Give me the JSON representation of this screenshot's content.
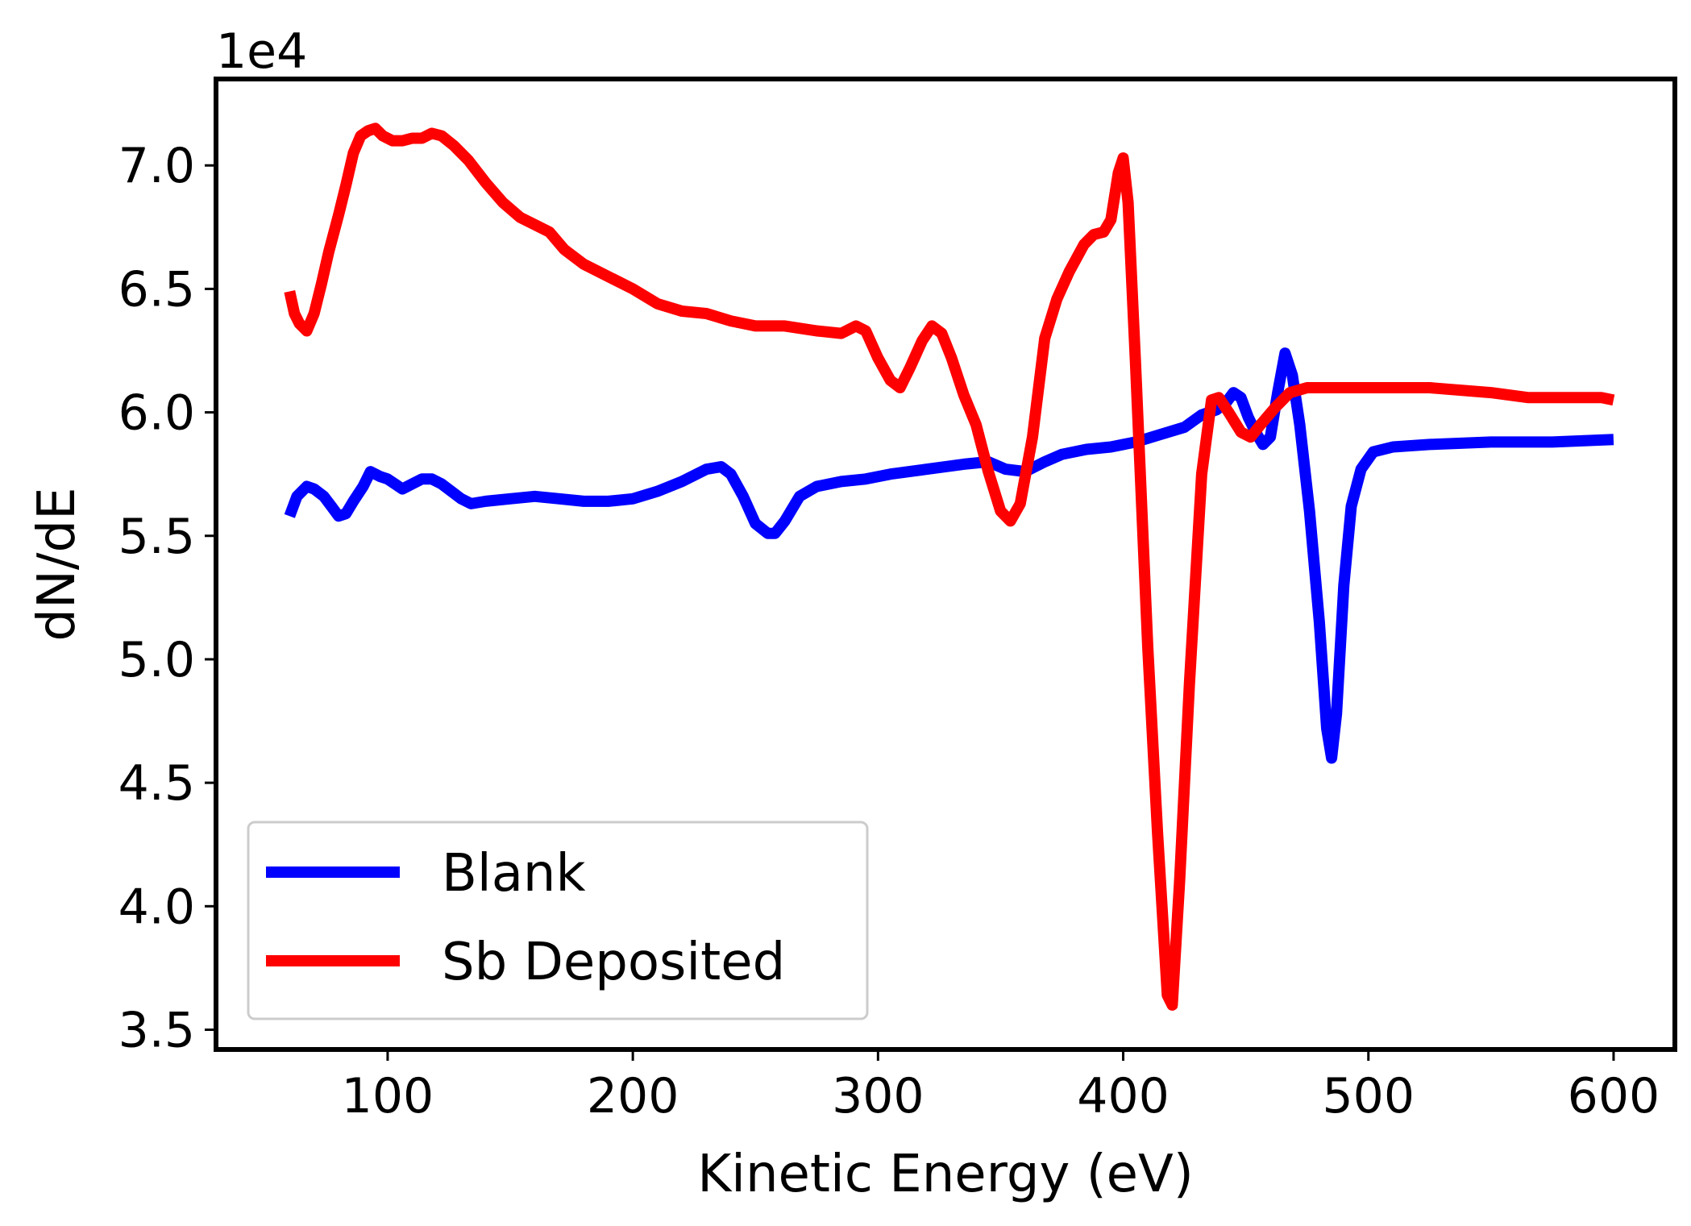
{
  "chart_data": {
    "type": "line",
    "title": "",
    "xlabel": "Kinetic Energy (eV)",
    "ylabel": "dN/dE",
    "y_offset_text": "1e4",
    "xlim": [
      30,
      625
    ],
    "ylim": [
      3.42,
      7.35
    ],
    "x_ticks": [
      100,
      200,
      300,
      400,
      500,
      600
    ],
    "y_ticks": [
      3.5,
      4.0,
      4.5,
      5.0,
      5.5,
      6.0,
      6.5,
      7.0
    ],
    "x_tick_labels": [
      "100",
      "200",
      "300",
      "400",
      "500",
      "600"
    ],
    "y_tick_labels": [
      "3.5",
      "4.0",
      "4.5",
      "5.0",
      "5.5",
      "6.0",
      "6.5",
      "7.0"
    ],
    "grid": false,
    "legend_position": "lower-left",
    "y_units_scale": "values in units of 1e4",
    "series": [
      {
        "name": "Blank",
        "color": "#0000ff",
        "points": [
          [
            60,
            5.58
          ],
          [
            63,
            5.66
          ],
          [
            67,
            5.7
          ],
          [
            70,
            5.69
          ],
          [
            74,
            5.66
          ],
          [
            77,
            5.62
          ],
          [
            80,
            5.58
          ],
          [
            83,
            5.59
          ],
          [
            86,
            5.64
          ],
          [
            90,
            5.7
          ],
          [
            93,
            5.76
          ],
          [
            97,
            5.74
          ],
          [
            100,
            5.73
          ],
          [
            103,
            5.71
          ],
          [
            106,
            5.69
          ],
          [
            110,
            5.71
          ],
          [
            114,
            5.73
          ],
          [
            118,
            5.73
          ],
          [
            122,
            5.71
          ],
          [
            126,
            5.68
          ],
          [
            130,
            5.65
          ],
          [
            134,
            5.63
          ],
          [
            140,
            5.64
          ],
          [
            150,
            5.65
          ],
          [
            160,
            5.66
          ],
          [
            170,
            5.65
          ],
          [
            180,
            5.64
          ],
          [
            190,
            5.64
          ],
          [
            200,
            5.65
          ],
          [
            210,
            5.68
          ],
          [
            220,
            5.72
          ],
          [
            230,
            5.77
          ],
          [
            236,
            5.78
          ],
          [
            240,
            5.75
          ],
          [
            245,
            5.66
          ],
          [
            250,
            5.55
          ],
          [
            255,
            5.51
          ],
          [
            258,
            5.51
          ],
          [
            262,
            5.56
          ],
          [
            268,
            5.66
          ],
          [
            275,
            5.7
          ],
          [
            285,
            5.72
          ],
          [
            295,
            5.73
          ],
          [
            305,
            5.75
          ],
          [
            320,
            5.77
          ],
          [
            335,
            5.79
          ],
          [
            345,
            5.8
          ],
          [
            352,
            5.77
          ],
          [
            360,
            5.76
          ],
          [
            368,
            5.8
          ],
          [
            375,
            5.83
          ],
          [
            385,
            5.85
          ],
          [
            395,
            5.86
          ],
          [
            405,
            5.88
          ],
          [
            415,
            5.91
          ],
          [
            425,
            5.94
          ],
          [
            432,
            5.99
          ],
          [
            438,
            6.01
          ],
          [
            442,
            6.04
          ],
          [
            445,
            6.08
          ],
          [
            448,
            6.06
          ],
          [
            451,
            5.98
          ],
          [
            454,
            5.92
          ],
          [
            457,
            5.87
          ],
          [
            460,
            5.9
          ],
          [
            463,
            6.08
          ],
          [
            466,
            6.24
          ],
          [
            469,
            6.15
          ],
          [
            472,
            5.95
          ],
          [
            476,
            5.6
          ],
          [
            480,
            5.15
          ],
          [
            483,
            4.72
          ],
          [
            485,
            4.6
          ],
          [
            487,
            4.78
          ],
          [
            490,
            5.3
          ],
          [
            493,
            5.62
          ],
          [
            497,
            5.77
          ],
          [
            502,
            5.84
          ],
          [
            510,
            5.86
          ],
          [
            525,
            5.87
          ],
          [
            550,
            5.88
          ],
          [
            575,
            5.88
          ],
          [
            600,
            5.89
          ]
        ]
      },
      {
        "name": "Sb Deposited",
        "color": "#ff0000",
        "points": [
          [
            60,
            6.49
          ],
          [
            62,
            6.4
          ],
          [
            64,
            6.36
          ],
          [
            67,
            6.33
          ],
          [
            70,
            6.4
          ],
          [
            73,
            6.52
          ],
          [
            76,
            6.65
          ],
          [
            80,
            6.8
          ],
          [
            83,
            6.92
          ],
          [
            86,
            7.05
          ],
          [
            89,
            7.12
          ],
          [
            92,
            7.14
          ],
          [
            95,
            7.15
          ],
          [
            98,
            7.12
          ],
          [
            102,
            7.1
          ],
          [
            106,
            7.1
          ],
          [
            110,
            7.11
          ],
          [
            114,
            7.11
          ],
          [
            118,
            7.13
          ],
          [
            122,
            7.12
          ],
          [
            127,
            7.08
          ],
          [
            133,
            7.02
          ],
          [
            140,
            6.93
          ],
          [
            147,
            6.85
          ],
          [
            154,
            6.79
          ],
          [
            160,
            6.76
          ],
          [
            166,
            6.73
          ],
          [
            172,
            6.66
          ],
          [
            180,
            6.6
          ],
          [
            190,
            6.55
          ],
          [
            200,
            6.5
          ],
          [
            210,
            6.44
          ],
          [
            220,
            6.41
          ],
          [
            230,
            6.4
          ],
          [
            240,
            6.37
          ],
          [
            250,
            6.35
          ],
          [
            262,
            6.35
          ],
          [
            275,
            6.33
          ],
          [
            285,
            6.32
          ],
          [
            291,
            6.35
          ],
          [
            295,
            6.33
          ],
          [
            300,
            6.22
          ],
          [
            305,
            6.13
          ],
          [
            309,
            6.1
          ],
          [
            313,
            6.18
          ],
          [
            318,
            6.29
          ],
          [
            322,
            6.35
          ],
          [
            326,
            6.32
          ],
          [
            330,
            6.22
          ],
          [
            335,
            6.07
          ],
          [
            340,
            5.95
          ],
          [
            345,
            5.76
          ],
          [
            350,
            5.6
          ],
          [
            354,
            5.56
          ],
          [
            358,
            5.63
          ],
          [
            363,
            5.9
          ],
          [
            368,
            6.3
          ],
          [
            373,
            6.46
          ],
          [
            378,
            6.57
          ],
          [
            384,
            6.68
          ],
          [
            388,
            6.72
          ],
          [
            392,
            6.73
          ],
          [
            395,
            6.78
          ],
          [
            398,
            6.97
          ],
          [
            400,
            7.03
          ],
          [
            402,
            6.85
          ],
          [
            405,
            6.2
          ],
          [
            410,
            5.05
          ],
          [
            414,
            4.3
          ],
          [
            418,
            3.64
          ],
          [
            420,
            3.6
          ],
          [
            423,
            4.1
          ],
          [
            427,
            4.9
          ],
          [
            432,
            5.75
          ],
          [
            436,
            6.05
          ],
          [
            439,
            6.06
          ],
          [
            443,
            6.0
          ],
          [
            448,
            5.92
          ],
          [
            452,
            5.9
          ],
          [
            456,
            5.95
          ],
          [
            462,
            6.02
          ],
          [
            468,
            6.08
          ],
          [
            475,
            6.1
          ],
          [
            500,
            6.1
          ],
          [
            525,
            6.1
          ],
          [
            550,
            6.08
          ],
          [
            565,
            6.06
          ],
          [
            580,
            6.06
          ],
          [
            595,
            6.06
          ],
          [
            600,
            6.05
          ]
        ]
      }
    ]
  }
}
